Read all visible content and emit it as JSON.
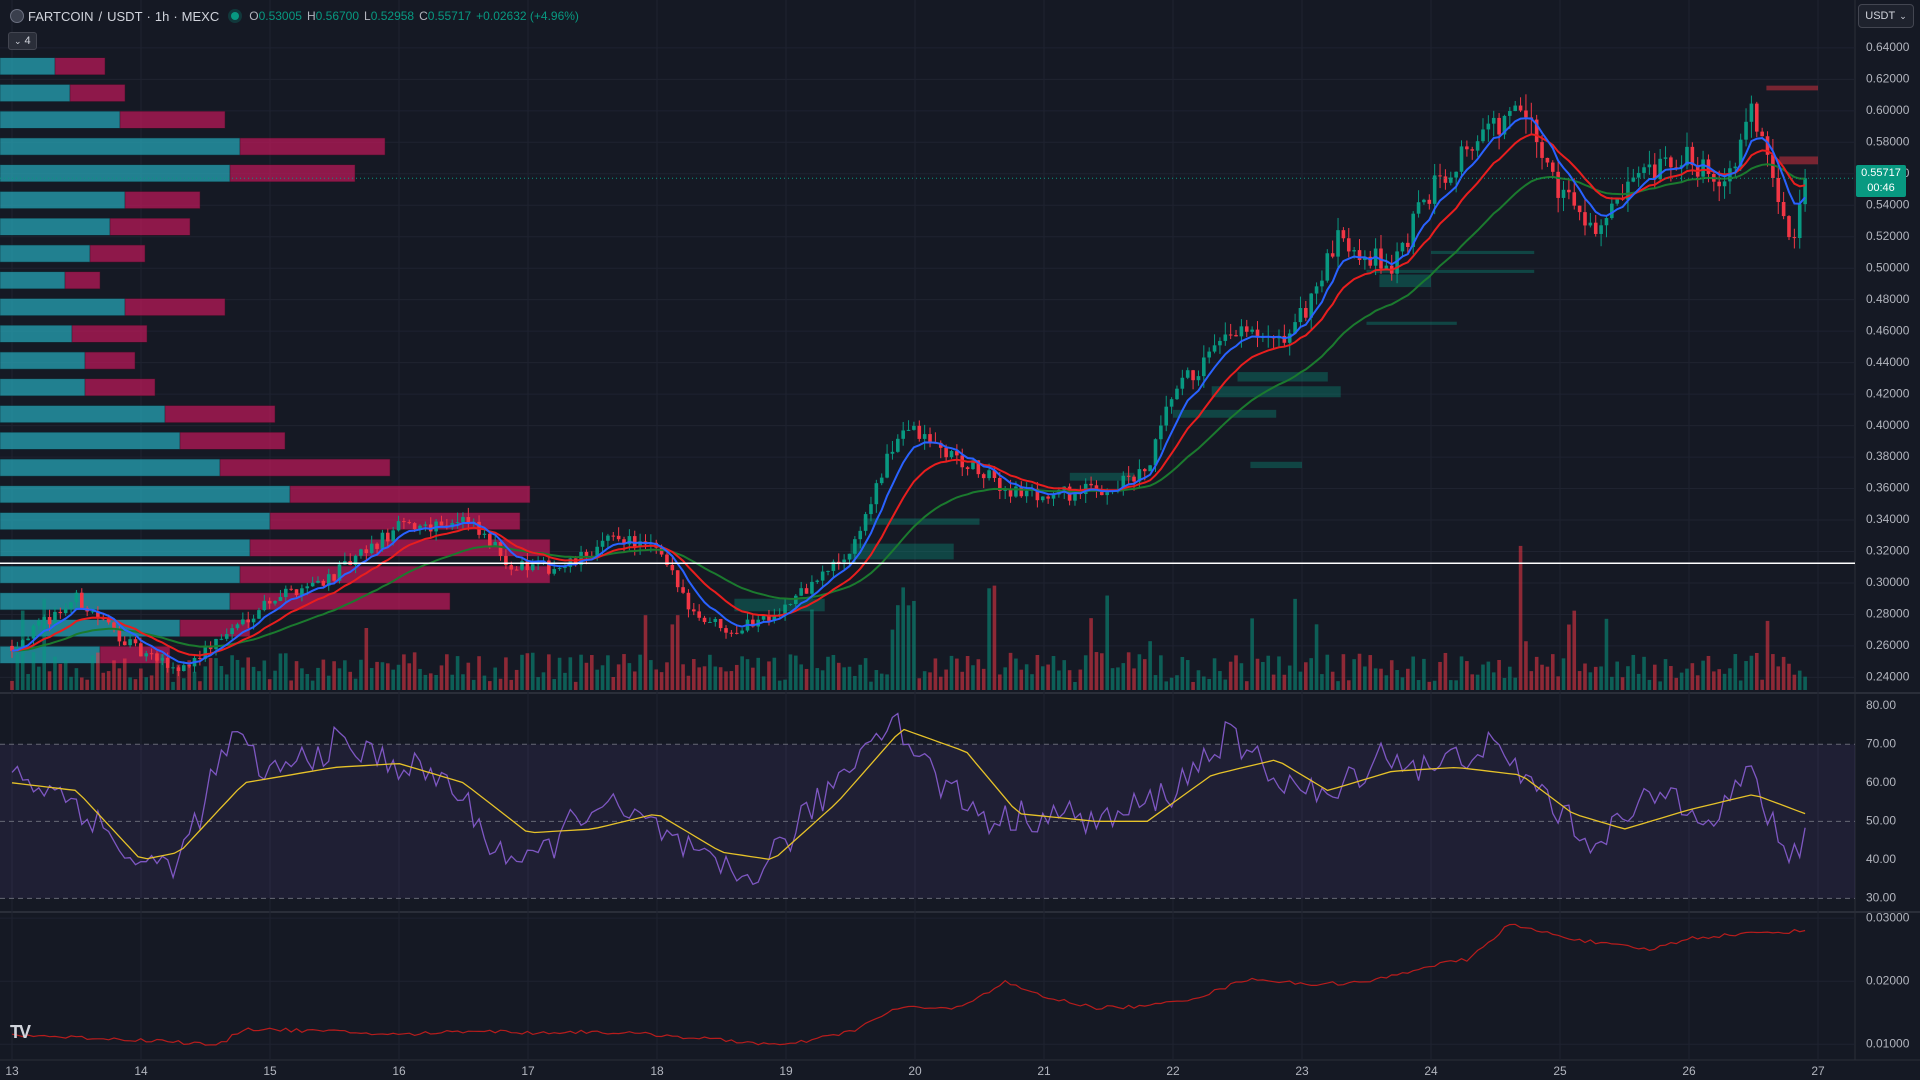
{
  "header": {
    "symbol": "FARTCOIN",
    "quote": "USDT",
    "interval": "1h",
    "exchange": "MEXC",
    "open_label": "O",
    "open": "0.53005",
    "high_label": "H",
    "high": "0.56700",
    "low_label": "L",
    "low": "0.52958",
    "close_label": "C",
    "close": "0.55717",
    "change": "+0.02632 (+4.96%)"
  },
  "controls": {
    "volume_profile_toggle": "4",
    "currency_button": "USDT"
  },
  "last_price": {
    "value": "0.55717",
    "countdown": "00:46"
  },
  "colors": {
    "background": "#151924",
    "bull": "#089981",
    "bear": "#f23645",
    "ema_fast": "#2962ff",
    "ema_mid": "#e91e1e",
    "ema_slow": "#1b7a2e",
    "rsi": "#7e57c2",
    "rsi_ma": "#e6c229",
    "vp_up": "#26a3b4",
    "vp_down": "#c2185b",
    "indicator_line": "#b71c1c"
  },
  "chart_data": [
    {
      "type": "candlestick",
      "name": "price",
      "x_tick_labels": [
        "13",
        "14",
        "15",
        "16",
        "17",
        "18",
        "19",
        "20",
        "21",
        "22",
        "23",
        "24",
        "25",
        "26",
        "27"
      ],
      "y_tick_labels": [
        "0.64000",
        "0.62000",
        "0.60000",
        "0.58000",
        "0.56000",
        "0.54000",
        "0.52000",
        "0.50000",
        "0.48000",
        "0.46000",
        "0.44000",
        "0.42000",
        "0.40000",
        "0.38000",
        "0.36000",
        "0.34000",
        "0.32000",
        "0.30000",
        "0.28000",
        "0.26000",
        "0.24000"
      ],
      "ylim": [
        0.232,
        0.645
      ],
      "x_range_days": [
        13,
        27
      ],
      "open": 0.53005,
      "high": 0.567,
      "low": 0.52958,
      "close": 0.55717,
      "horizontal_line": 0.3125,
      "key_path": [
        [
          13.0,
          0.26
        ],
        [
          13.5,
          0.29
        ],
        [
          14.0,
          0.255
        ],
        [
          14.3,
          0.245
        ],
        [
          14.7,
          0.27
        ],
        [
          15.0,
          0.29
        ],
        [
          15.5,
          0.305
        ],
        [
          16.0,
          0.335
        ],
        [
          16.5,
          0.34
        ],
        [
          16.9,
          0.31
        ],
        [
          17.3,
          0.31
        ],
        [
          17.7,
          0.33
        ],
        [
          18.0,
          0.32
        ],
        [
          18.3,
          0.28
        ],
        [
          18.6,
          0.27
        ],
        [
          19.0,
          0.285
        ],
        [
          19.5,
          0.32
        ],
        [
          19.9,
          0.4
        ],
        [
          20.3,
          0.38
        ],
        [
          20.7,
          0.36
        ],
        [
          21.0,
          0.355
        ],
        [
          21.5,
          0.36
        ],
        [
          21.8,
          0.37
        ],
        [
          22.0,
          0.42
        ],
        [
          22.5,
          0.46
        ],
        [
          22.8,
          0.45
        ],
        [
          23.0,
          0.47
        ],
        [
          23.3,
          0.52
        ],
        [
          23.7,
          0.5
        ],
        [
          24.0,
          0.55
        ],
        [
          24.3,
          0.58
        ],
        [
          24.7,
          0.6
        ],
        [
          25.0,
          0.55
        ],
        [
          25.3,
          0.525
        ],
        [
          25.6,
          0.555
        ],
        [
          26.0,
          0.57
        ],
        [
          26.3,
          0.555
        ],
        [
          26.5,
          0.6
        ],
        [
          26.8,
          0.52
        ],
        [
          26.9,
          0.557
        ]
      ],
      "volume_profile_levels": [
        {
          "price": 0.628,
          "up": 55,
          "down": 50
        },
        {
          "price": 0.611,
          "up": 70,
          "down": 55
        },
        {
          "price": 0.594,
          "up": 120,
          "down": 105
        },
        {
          "price": 0.577,
          "up": 240,
          "down": 145
        },
        {
          "price": 0.56,
          "up": 230,
          "down": 125
        },
        {
          "price": 0.543,
          "up": 125,
          "down": 75
        },
        {
          "price": 0.526,
          "up": 110,
          "down": 80
        },
        {
          "price": 0.509,
          "up": 90,
          "down": 55
        },
        {
          "price": 0.492,
          "up": 65,
          "down": 35
        },
        {
          "price": 0.475,
          "up": 125,
          "down": 100
        },
        {
          "price": 0.458,
          "up": 72,
          "down": 75
        },
        {
          "price": 0.441,
          "up": 85,
          "down": 50
        },
        {
          "price": 0.424,
          "up": 85,
          "down": 70
        },
        {
          "price": 0.407,
          "up": 165,
          "down": 110
        },
        {
          "price": 0.39,
          "up": 180,
          "down": 105
        },
        {
          "price": 0.373,
          "up": 220,
          "down": 170
        },
        {
          "price": 0.356,
          "up": 290,
          "down": 240
        },
        {
          "price": 0.339,
          "up": 270,
          "down": 250
        },
        {
          "price": 0.322,
          "up": 250,
          "down": 300
        },
        {
          "price": 0.305,
          "up": 240,
          "down": 310
        },
        {
          "price": 0.288,
          "up": 230,
          "down": 220
        },
        {
          "price": 0.271,
          "up": 180,
          "down": 70
        },
        {
          "price": 0.254,
          "up": 100,
          "down": 70
        }
      ]
    },
    {
      "type": "line",
      "name": "rsi",
      "y_tick_labels": [
        "80.00",
        "70.00",
        "60.00",
        "50.00",
        "40.00",
        "30.00"
      ],
      "ylim": [
        27,
        82
      ],
      "bands": [
        70,
        50,
        30
      ],
      "key_path": [
        [
          13.0,
          63
        ],
        [
          13.5,
          55
        ],
        [
          14.0,
          38
        ],
        [
          14.3,
          40
        ],
        [
          14.7,
          72
        ],
        [
          15.0,
          62
        ],
        [
          15.5,
          70
        ],
        [
          16.0,
          65
        ],
        [
          16.4,
          60
        ],
        [
          16.7,
          45
        ],
        [
          17.0,
          38
        ],
        [
          17.5,
          55
        ],
        [
          18.0,
          48
        ],
        [
          18.4,
          38
        ],
        [
          18.7,
          35
        ],
        [
          19.0,
          45
        ],
        [
          19.5,
          65
        ],
        [
          19.8,
          78
        ],
        [
          20.2,
          60
        ],
        [
          20.6,
          50
        ],
        [
          21.0,
          52
        ],
        [
          21.5,
          50
        ],
        [
          22.0,
          58
        ],
        [
          22.4,
          72
        ],
        [
          22.8,
          62
        ],
        [
          23.2,
          55
        ],
        [
          23.6,
          68
        ],
        [
          24.0,
          63
        ],
        [
          24.4,
          70
        ],
        [
          24.8,
          60
        ],
        [
          25.2,
          45
        ],
        [
          25.5,
          50
        ],
        [
          25.8,
          58
        ],
        [
          26.2,
          52
        ],
        [
          26.5,
          63
        ],
        [
          26.75,
          38
        ],
        [
          26.9,
          47
        ]
      ],
      "ma_path": [
        [
          13.0,
          60
        ],
        [
          13.5,
          58
        ],
        [
          14.0,
          40
        ],
        [
          14.3,
          42
        ],
        [
          14.8,
          60
        ],
        [
          15.5,
          64
        ],
        [
          16.0,
          65
        ],
        [
          16.5,
          60
        ],
        [
          17.0,
          47
        ],
        [
          17.5,
          48
        ],
        [
          18.0,
          52
        ],
        [
          18.5,
          42
        ],
        [
          18.9,
          40
        ],
        [
          19.4,
          55
        ],
        [
          19.9,
          74
        ],
        [
          20.4,
          68
        ],
        [
          20.8,
          52
        ],
        [
          21.4,
          50
        ],
        [
          21.8,
          50
        ],
        [
          22.3,
          62
        ],
        [
          22.8,
          66
        ],
        [
          23.2,
          58
        ],
        [
          23.7,
          63
        ],
        [
          24.2,
          64
        ],
        [
          24.7,
          62
        ],
        [
          25.1,
          52
        ],
        [
          25.5,
          48
        ],
        [
          26.0,
          53
        ],
        [
          26.5,
          57
        ],
        [
          26.9,
          52
        ]
      ]
    },
    {
      "type": "line",
      "name": "indicator",
      "y_tick_labels": [
        "0.03000",
        "0.02000",
        "0.01000"
      ],
      "ylim": [
        0.0075,
        0.0305
      ],
      "key_path": [
        [
          13.0,
          0.0115
        ],
        [
          13.6,
          0.011
        ],
        [
          14.2,
          0.0105
        ],
        [
          14.6,
          0.0098
        ],
        [
          14.8,
          0.0125
        ],
        [
          15.5,
          0.012
        ],
        [
          16.0,
          0.0115
        ],
        [
          16.6,
          0.0122
        ],
        [
          17.0,
          0.0118
        ],
        [
          17.5,
          0.012
        ],
        [
          18.0,
          0.0115
        ],
        [
          18.6,
          0.0105
        ],
        [
          19.0,
          0.0098
        ],
        [
          19.5,
          0.012
        ],
        [
          19.9,
          0.016
        ],
        [
          20.3,
          0.0155
        ],
        [
          20.7,
          0.0198
        ],
        [
          21.0,
          0.0175
        ],
        [
          21.4,
          0.0158
        ],
        [
          21.8,
          0.016
        ],
        [
          22.2,
          0.0175
        ],
        [
          22.6,
          0.0205
        ],
        [
          23.0,
          0.0195
        ],
        [
          23.5,
          0.0198
        ],
        [
          24.0,
          0.0225
        ],
        [
          24.3,
          0.0235
        ],
        [
          24.6,
          0.029
        ],
        [
          25.0,
          0.0272
        ],
        [
          25.3,
          0.026
        ],
        [
          25.7,
          0.025
        ],
        [
          26.0,
          0.0268
        ],
        [
          26.4,
          0.0275
        ],
        [
          26.9,
          0.028
        ]
      ]
    }
  ]
}
